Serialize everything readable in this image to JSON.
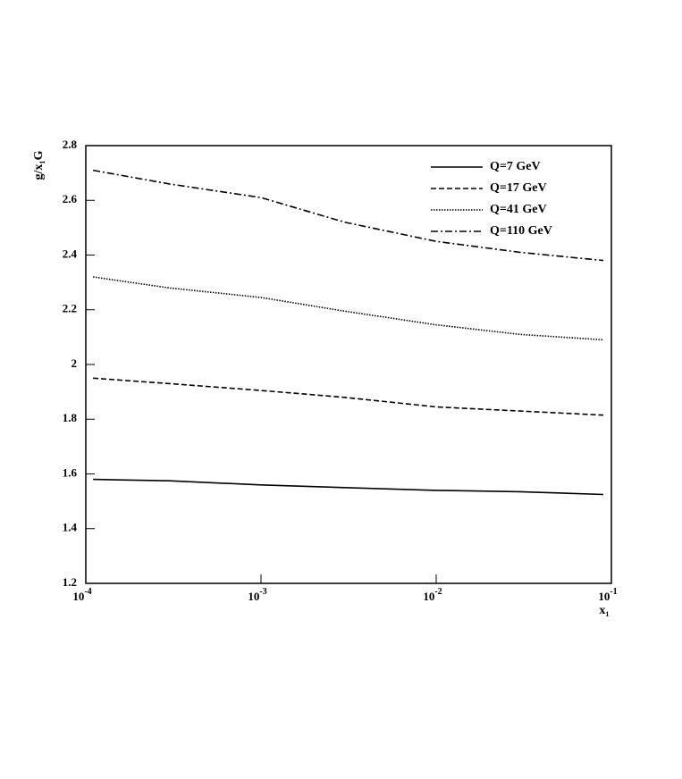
{
  "chart_data": {
    "type": "line",
    "x_label": "x₁",
    "y_label": "g/x₁G",
    "x": [
      0.00011,
      0.0003,
      0.001,
      0.003,
      0.01,
      0.03,
      0.09
    ],
    "series": [
      {
        "name": "Q=7 GeV",
        "color": "#000000",
        "linestyle": "solid",
        "values": [
          1.58,
          1.575,
          1.56,
          1.55,
          1.54,
          1.535,
          1.525
        ]
      },
      {
        "name": "Q=17 GeV",
        "color": "#000000",
        "linestyle": "dashed",
        "values": [
          1.95,
          1.93,
          1.905,
          1.88,
          1.845,
          1.83,
          1.815
        ]
      },
      {
        "name": "Q=41 GeV",
        "color": "#000000",
        "linestyle": "dotted",
        "values": [
          2.32,
          2.28,
          2.245,
          2.195,
          2.145,
          2.11,
          2.09
        ]
      },
      {
        "name": "Q=110 GeV",
        "color": "#000000",
        "linestyle": "dashdot",
        "values": [
          2.71,
          2.66,
          2.61,
          2.52,
          2.45,
          2.41,
          2.38
        ]
      }
    ],
    "xscale": "log",
    "xlim": [
      0.0001,
      0.1
    ],
    "xticks": [
      {
        "value": 0.0001,
        "label": "10",
        "exponent": "-4"
      },
      {
        "value": 0.001,
        "label": "10",
        "exponent": "-3"
      },
      {
        "value": 0.01,
        "label": "10",
        "exponent": "-2"
      },
      {
        "value": 0.1,
        "label": "10",
        "exponent": "-1"
      }
    ],
    "ylim": [
      1.2,
      2.8
    ],
    "yticks": [
      1.2,
      1.4,
      1.6,
      1.8,
      2,
      2.2,
      2.4,
      2.6,
      2.8
    ],
    "legend": "upper right"
  }
}
